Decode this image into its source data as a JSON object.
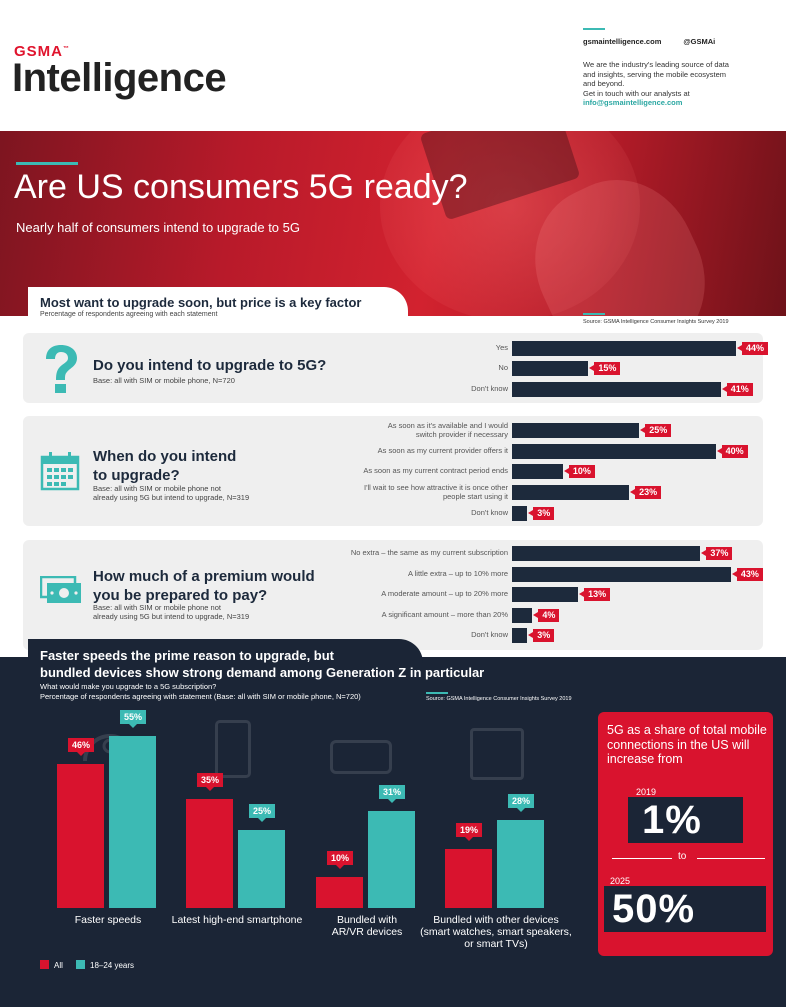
{
  "header": {
    "logo_top": "GSMA",
    "logo_tm": "™",
    "logo_main": "Intelligence",
    "website": "gsmaintelligence.com",
    "twitter": "@GSMAi",
    "about": "We are the industry's leading source of data and insights, serving the mobile ecosystem and beyond.",
    "contact_prefix": "Get in touch with our analysts at",
    "email": "info@gsmaintelligence.com"
  },
  "hero": {
    "title": "Are US consumers 5G ready?",
    "subtitle": "Nearly half of consumers intend to upgrade to 5G"
  },
  "colors": {
    "navy": "#1d2a3c",
    "red": "#d9132e",
    "teal": "#3cbab4",
    "dark_bg": "#1b2536"
  },
  "section1": {
    "title": "Most want to upgrade soon, but price is a key factor",
    "subtitle": "Percentage of respondents agreeing with each statement",
    "source": "Source: GSMA Intelligence Consumer Insights Survey 2019",
    "questions": [
      {
        "icon": "question-mark-icon",
        "title_lines": [
          "Do you intend to upgrade to 5G?"
        ],
        "base_lines": [
          "Base: all with SIM or mobile phone, N=720"
        ]
      },
      {
        "icon": "calendar-icon",
        "title_lines": [
          "When do you intend",
          "to upgrade?"
        ],
        "base_lines": [
          "Base: all with SIM or mobile phone not",
          "already using 5G but intend to upgrade, N=319"
        ]
      },
      {
        "icon": "money-icon",
        "title_lines": [
          "How much of a premium would",
          "you be prepared to pay?"
        ],
        "base_lines": [
          "Base: all with SIM or mobile phone not",
          "already using 5G but intend to upgrade, N=319"
        ]
      }
    ]
  },
  "section2": {
    "title_lines": [
      "Faster speeds the prime reason to upgrade, but",
      "bundled devices show strong demand among Generation Z in particular"
    ],
    "subtitle_lines": [
      "What would make you upgrade to a 5G subscription?",
      "Percentage of respondents agreeing with statement (Base: all with SIM or mobile phone, N=720)"
    ],
    "source": "Source: GSMA Intelligence Consumer Insights Survey 2019",
    "legend_all": "All",
    "legend_young": "18–24 years"
  },
  "callout": {
    "text": "5G as a share of total mobile connections in the US will increase from",
    "year_from": "2019",
    "value_from": "1%",
    "to": "to",
    "year_to": "2025",
    "value_to": "50%"
  },
  "chart_data": [
    {
      "type": "bar",
      "orientation": "horizontal",
      "question": "Do you intend to upgrade to 5G?",
      "categories": [
        [
          "Yes"
        ],
        [
          "No"
        ],
        [
          "Don't know"
        ]
      ],
      "values": [
        44,
        15,
        41
      ],
      "labels": [
        "44%",
        "15%",
        "41%"
      ],
      "xlim": [
        0,
        44
      ]
    },
    {
      "type": "bar",
      "orientation": "horizontal",
      "question": "When do you intend to upgrade?",
      "categories": [
        [
          "As soon as it's available and I would",
          "switch provider if necessary"
        ],
        [
          "As soon as my current provider offers it"
        ],
        [
          "As soon as my current contract period ends"
        ],
        [
          "I'll wait to see how attractive it is once other",
          "people start using it"
        ],
        [
          "Don't know"
        ]
      ],
      "values": [
        25,
        40,
        10,
        23,
        3
      ],
      "labels": [
        "25%",
        "40%",
        "10%",
        "23%",
        "3%"
      ],
      "xlim": [
        0,
        44
      ]
    },
    {
      "type": "bar",
      "orientation": "horizontal",
      "question": "How much of a premium would you be prepared to pay?",
      "categories": [
        [
          "No extra – the same as my current subscription"
        ],
        [
          "A little extra – up to 10% more"
        ],
        [
          "A moderate amount – up to 20% more"
        ],
        [
          "A significant amount – more than 20%"
        ],
        [
          "Don't know"
        ]
      ],
      "values": [
        37,
        43,
        13,
        4,
        3
      ],
      "labels": [
        "37%",
        "43%",
        "13%",
        "4%",
        "3%"
      ],
      "xlim": [
        0,
        44
      ]
    },
    {
      "type": "bar",
      "orientation": "vertical",
      "question": "What would make you upgrade to a 5G subscription?",
      "categories": [
        [
          "Faster speeds"
        ],
        [
          "Latest high-end smartphone"
        ],
        [
          "Bundled with",
          "AR/VR devices"
        ],
        [
          "Bundled with other devices",
          "(smart watches, smart speakers,",
          "or smart TVs)"
        ]
      ],
      "series": [
        {
          "name": "All",
          "color": "#d9132e",
          "values": [
            46,
            35,
            10,
            19
          ],
          "labels": [
            "46%",
            "35%",
            "10%",
            "19%"
          ]
        },
        {
          "name": "18–24 years",
          "color": "#3cbab4",
          "values": [
            55,
            25,
            31,
            28
          ],
          "labels": [
            "55%",
            "25%",
            "31%",
            "28%"
          ]
        }
      ],
      "ylim": [
        0,
        55
      ]
    }
  ]
}
